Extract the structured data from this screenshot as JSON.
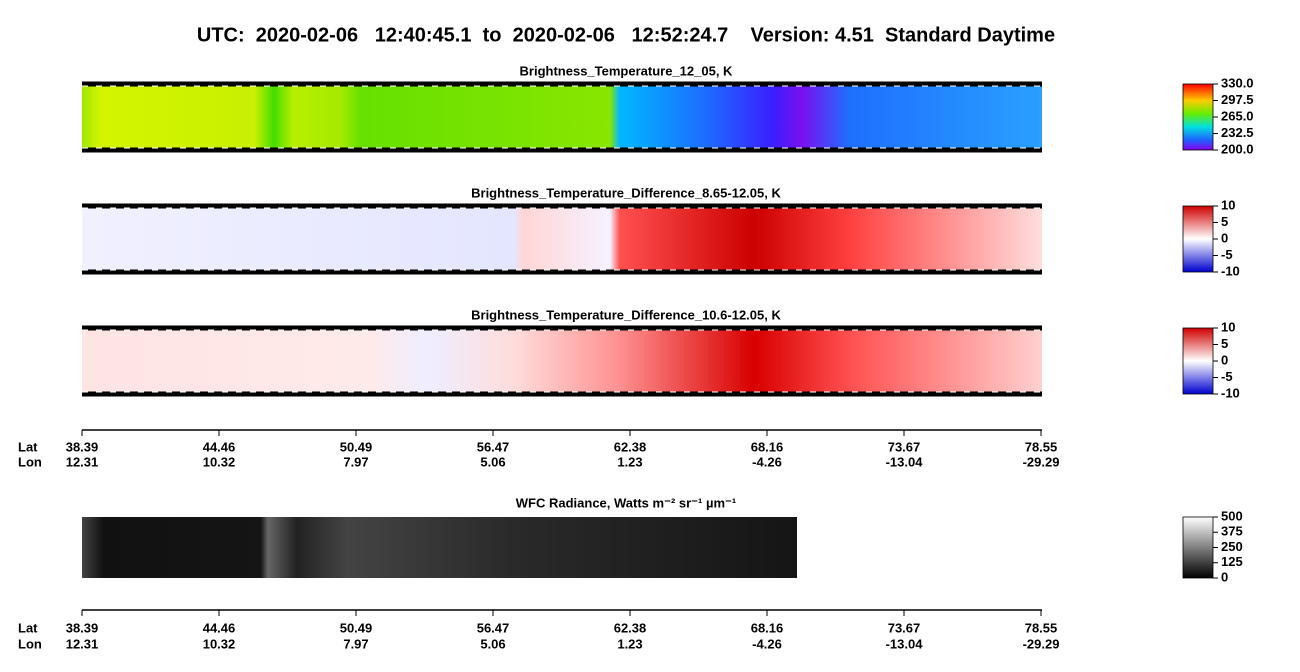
{
  "title": "UTC:  2020-02-06   12:40:45.1  to  2020-02-06   12:52:24.7    Version: 4.51  Standard Daytime",
  "panels": [
    {
      "title": "Brightness_Temperature_12_05, K",
      "clim": [
        200,
        330
      ],
      "cticks": [
        {
          "value": 330,
          "label": "330.0"
        },
        {
          "value": 297.5,
          "label": "297.5"
        },
        {
          "value": 265,
          "label": "265.0"
        },
        {
          "value": 232.5,
          "label": "232.5"
        },
        {
          "value": 200,
          "label": "200.0"
        }
      ]
    },
    {
      "title": "Brightness_Temperature_Difference_8.65-12.05, K",
      "clim": [
        -10,
        10
      ],
      "cticks": [
        10,
        5,
        0,
        -5,
        -10
      ]
    },
    {
      "title": "Brightness_Temperature_Difference_10.6-12.05, K",
      "clim": [
        -10,
        10
      ],
      "cticks": [
        10,
        5,
        0,
        -5,
        -10
      ]
    },
    {
      "title": "WFC Radiance, Watts m⁻² sr⁻¹ µm⁻¹",
      "clim": [
        0,
        500
      ],
      "cticks": [
        500,
        375,
        250,
        125,
        0
      ]
    }
  ],
  "axis": {
    "lat_label": "Lat",
    "lon_label": "Lon",
    "lat": [
      38.39,
      44.46,
      50.49,
      56.47,
      62.38,
      68.16,
      73.67,
      78.55
    ],
    "lon": [
      12.31,
      10.32,
      7.97,
      5.06,
      1.23,
      -4.26,
      -13.04,
      -29.29
    ]
  }
}
